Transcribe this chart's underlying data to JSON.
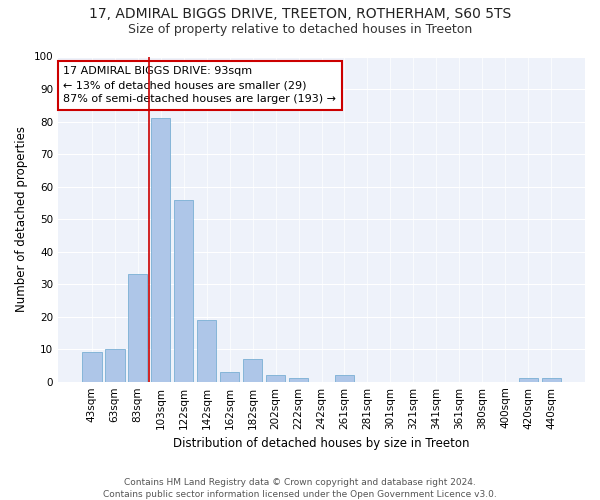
{
  "title1": "17, ADMIRAL BIGGS DRIVE, TREETON, ROTHERHAM, S60 5TS",
  "title2": "Size of property relative to detached houses in Treeton",
  "xlabel": "Distribution of detached houses by size in Treeton",
  "ylabel": "Number of detached properties",
  "bar_labels": [
    "43sqm",
    "63sqm",
    "83sqm",
    "103sqm",
    "122sqm",
    "142sqm",
    "162sqm",
    "182sqm",
    "202sqm",
    "222sqm",
    "242sqm",
    "261sqm",
    "281sqm",
    "301sqm",
    "321sqm",
    "341sqm",
    "361sqm",
    "380sqm",
    "400sqm",
    "420sqm",
    "440sqm"
  ],
  "bar_values": [
    9,
    10,
    33,
    81,
    56,
    19,
    3,
    7,
    2,
    1,
    0,
    2,
    0,
    0,
    0,
    0,
    0,
    0,
    0,
    1,
    1
  ],
  "bar_color": "#aec6e8",
  "bar_edge_color": "#7aafd4",
  "annotation_text": "17 ADMIRAL BIGGS DRIVE: 93sqm\n← 13% of detached houses are smaller (29)\n87% of semi-detached houses are larger (193) →",
  "annotation_box_color": "#ffffff",
  "annotation_box_edge": "#cc0000",
  "line_color": "#cc0000",
  "ylim": [
    0,
    100
  ],
  "yticks": [
    0,
    10,
    20,
    30,
    40,
    50,
    60,
    70,
    80,
    90,
    100
  ],
  "bg_color": "#eef2fa",
  "footer": "Contains HM Land Registry data © Crown copyright and database right 2024.\nContains public sector information licensed under the Open Government Licence v3.0.",
  "title1_fontsize": 10,
  "title2_fontsize": 9,
  "xlabel_fontsize": 8.5,
  "ylabel_fontsize": 8.5,
  "tick_fontsize": 7.5,
  "annotation_fontsize": 8,
  "footer_fontsize": 6.5
}
